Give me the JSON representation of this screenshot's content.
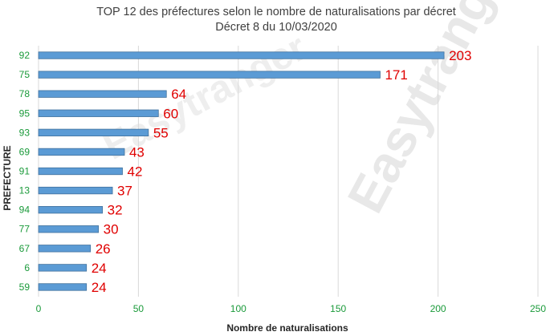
{
  "chart_data": {
    "type": "bar",
    "orientation": "horizontal",
    "title": "TOP 12 des préfectures selon le nombre de naturalisations par décret",
    "subtitle": "Décret 8 du 10/03/2020",
    "xlabel": "Nombre de naturalisations",
    "ylabel": "PREFECTURE",
    "xlim": [
      0,
      250
    ],
    "xticks": [
      0,
      50,
      100,
      150,
      200,
      250
    ],
    "categories": [
      "92",
      "75",
      "78",
      "95",
      "93",
      "69",
      "91",
      "13",
      "94",
      "77",
      "67",
      "6",
      "59"
    ],
    "values": [
      203,
      171,
      64,
      60,
      55,
      43,
      42,
      37,
      32,
      30,
      26,
      24,
      24
    ],
    "grid": "vertical",
    "bar_color": "#5b9bd5",
    "label_color": "#e00000",
    "tick_color": "#1a9a3a"
  },
  "watermark": "Easytranger"
}
